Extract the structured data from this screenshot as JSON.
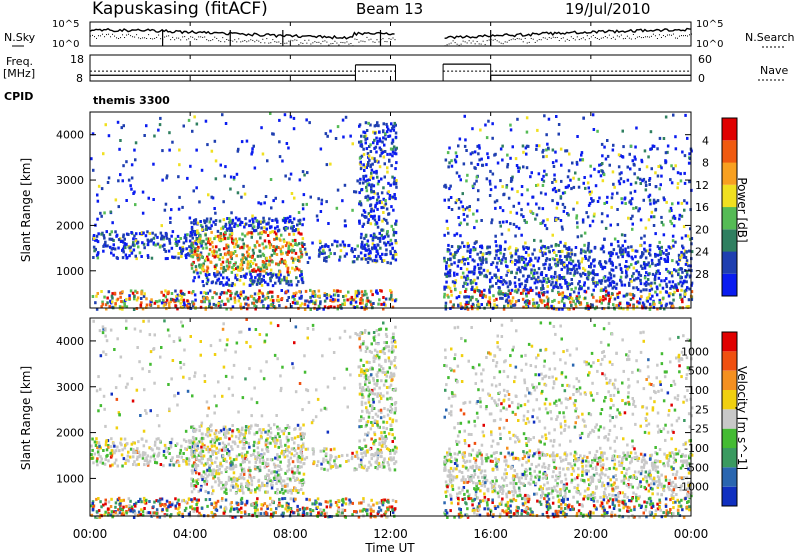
{
  "header": {
    "station": "Kapuskasing (fitACF)",
    "beam": "Beam 13",
    "date": "19/Jul/2010"
  },
  "left_labels": {
    "nsky": "N.Sky",
    "freq_line1": "Freq.",
    "freq_line2": "[MHz]",
    "cpid": "CPID"
  },
  "right_labels": {
    "nsearch": "N.Search",
    "nave": "Nave"
  },
  "cpid_text": "themis 3300",
  "x_axis": {
    "label": "Time UT",
    "ticks": [
      "00:00",
      "04:00",
      "08:00",
      "12:00",
      "16:00",
      "20:00",
      "00:00"
    ]
  },
  "chart_data": [
    {
      "type": "line",
      "name": "noise",
      "ylim_labels": [
        "10^0",
        "10^5"
      ],
      "right_ylim_labels": [
        "10^0",
        "10^5"
      ],
      "data_gap_hours": [
        12.2,
        14.1
      ]
    },
    {
      "type": "line",
      "name": "frequency-nave",
      "yticks_left": [
        "8",
        "18"
      ],
      "yticks_right": [
        "0",
        "60"
      ],
      "freq_steps": [
        {
          "x0": 0,
          "x1": 10.6,
          "value": 10.2
        },
        {
          "x0": 10.6,
          "x1": 12.2,
          "value": 14.2
        },
        {
          "x0": 14.1,
          "x1": 16.0,
          "value": 14.5
        },
        {
          "x0": 16.0,
          "x1": 24.0,
          "value": 10.2
        }
      ],
      "nave_level": 11.8
    },
    {
      "type": "heatmap",
      "name": "power",
      "ylabel": "Slant Range [km]",
      "yticks": [
        1000,
        2000,
        3000,
        4000
      ],
      "ylim": [
        180,
        4500
      ],
      "xlim": [
        0,
        24
      ],
      "colorbar": {
        "label": "Power [dB]",
        "ticks": [
          "4",
          "8",
          "12",
          "16",
          "20",
          "24",
          "28"
        ],
        "colors": [
          "#0a1cf0",
          "#1f3fb0",
          "#2f7f60",
          "#55bb55",
          "#f0e020",
          "#f8a020",
          "#f05a10",
          "#e00000"
        ]
      }
    },
    {
      "type": "heatmap",
      "name": "velocity",
      "ylabel": "Slant Range [km]",
      "yticks": [
        1000,
        2000,
        3000,
        4000
      ],
      "ylim": [
        180,
        4500
      ],
      "xlim": [
        0,
        24
      ],
      "colorbar": {
        "label": "Velocity [m s^-1]",
        "ticks": [
          "1000",
          "500",
          "100",
          "25",
          "-25",
          "-100",
          "-500",
          "-1000"
        ],
        "colors": [
          "#1030c0",
          "#2a66b0",
          "#3a9a60",
          "#44bb33",
          "#c8c8c8",
          "#f0d010",
          "#f49020",
          "#f05010",
          "#e00000"
        ]
      }
    }
  ]
}
